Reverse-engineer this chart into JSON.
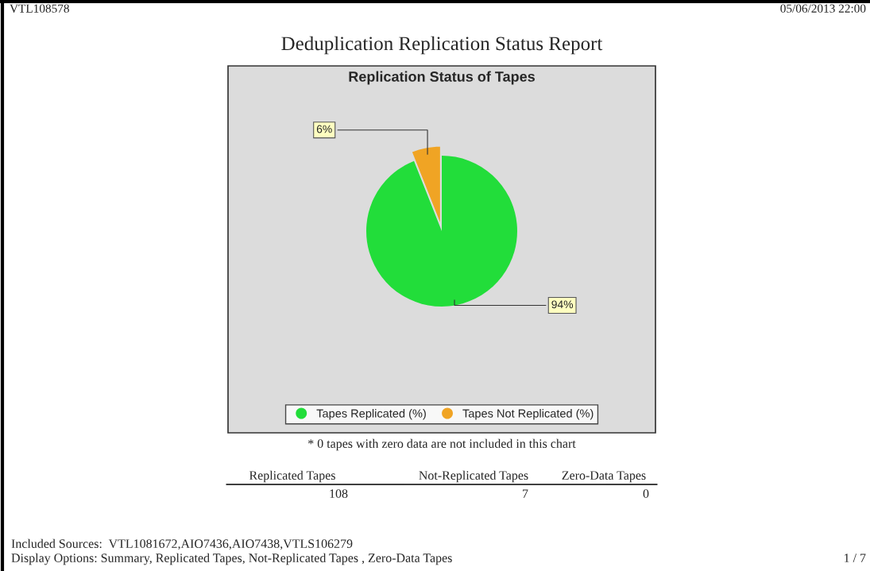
{
  "chart_data": {
    "type": "pie",
    "title": "Replication Status of Tapes",
    "categories": [
      "Tapes Replicated (%)",
      "Tapes Not Replicated (%)"
    ],
    "values": [
      94,
      6
    ],
    "colors": [
      "#22dd3a",
      "#f0a424"
    ],
    "value_labels": [
      "94%",
      "6%"
    ],
    "legend": "bottom",
    "annotations": [
      "VTL108578",
      "05/06/2013 22:00",
      "Deduplication Replication Status Report",
      "* 0 tapes with zero data are not included in this chart",
      "Replicated Tapes",
      "Not-Replicated Tapes",
      "Zero-Data Tapes",
      "108",
      "7",
      "0",
      "Included Sources:  VTL1081672,AIO7436,AIO7438,VTLS106279",
      "Display Options: Summary, Replicated Tapes, Not-Replicated Tapes , Zero-Data Tapes",
      "1 / 7"
    ]
  }
}
